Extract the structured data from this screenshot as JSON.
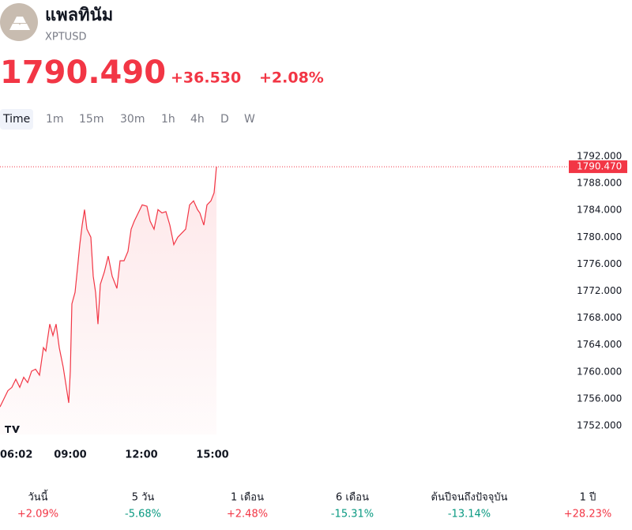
{
  "header": {
    "title": "แพลทินัม",
    "symbol": "XPTUSD"
  },
  "quote": {
    "price": "1790.490",
    "change": "+36.530",
    "change_percent": "+2.08%"
  },
  "tabs": [
    "Time",
    "1m",
    "15m",
    "30m",
    "1h",
    "4h",
    "D",
    "W"
  ],
  "chart_data": {
    "type": "line",
    "x": [
      362,
      372,
      382,
      392,
      402,
      412,
      422,
      432,
      442,
      452,
      462,
      472,
      478,
      488,
      496,
      504,
      512,
      522,
      530,
      536,
      540,
      544,
      552,
      558,
      564,
      570,
      576,
      582,
      592,
      598,
      604,
      610,
      616,
      626,
      636,
      646,
      658,
      666,
      676,
      686,
      694,
      702,
      712,
      722,
      734,
      742,
      752,
      762,
      772,
      782,
      792,
      802,
      812,
      822,
      832,
      842,
      852,
      862,
      868,
      878,
      886,
      896,
      904,
      910
    ],
    "series": [
      {
        "name": "XPTUSD",
        "color": "#f23645",
        "values": [
          1754.8,
          1756.0,
          1757.2,
          1757.7,
          1758.9,
          1757.7,
          1759.2,
          1758.4,
          1760.1,
          1760.4,
          1759.5,
          1763.6,
          1763.1,
          1767.1,
          1765.4,
          1767.1,
          1763.6,
          1760.7,
          1757.7,
          1755.4,
          1760.1,
          1770.1,
          1771.8,
          1775.3,
          1778.9,
          1781.8,
          1784.1,
          1781.2,
          1780.0,
          1774.2,
          1771.8,
          1767.1,
          1773.0,
          1774.8,
          1777.2,
          1774.2,
          1772.4,
          1776.5,
          1776.5,
          1777.9,
          1781.2,
          1782.4,
          1783.6,
          1784.8,
          1784.6,
          1782.4,
          1781.2,
          1784.1,
          1783.6,
          1783.8,
          1781.8,
          1778.9,
          1780.0,
          1780.6,
          1781.2,
          1784.8,
          1785.4,
          1784.1,
          1783.6,
          1781.8,
          1784.8,
          1785.4,
          1786.6,
          1790.47
        ]
      }
    ],
    "xlim": [
      362,
      1802
    ],
    "ylim": [
      1750,
      1794
    ],
    "xticks": [
      {
        "value": 362,
        "label": "06:02"
      },
      {
        "value": 540,
        "label": "09:00"
      },
      {
        "value": 720,
        "label": "12:00"
      },
      {
        "value": 900,
        "label": "15:00"
      }
    ],
    "yticks": [
      {
        "value": 1752,
        "label": "1752.000"
      },
      {
        "value": 1756,
        "label": "1756.000"
      },
      {
        "value": 1760,
        "label": "1760.000"
      },
      {
        "value": 1764,
        "label": "1764.000"
      },
      {
        "value": 1768,
        "label": "1768.000"
      },
      {
        "value": 1772,
        "label": "1772.000"
      },
      {
        "value": 1776,
        "label": "1776.000"
      },
      {
        "value": 1780,
        "label": "1780.000"
      },
      {
        "value": 1784,
        "label": "1784.000"
      },
      {
        "value": 1788,
        "label": "1788.000"
      },
      {
        "value": 1792,
        "label": "1792.000"
      }
    ],
    "price_line": {
      "value": 1790.47,
      "label": "1790.470"
    }
  },
  "performance": [
    {
      "label": "วันนี้",
      "value": "+2.09%"
    },
    {
      "label": "5 วัน",
      "value": "-5.68%"
    },
    {
      "label": "1 เดือน",
      "value": "+2.48%"
    },
    {
      "label": "6 เดือน",
      "value": "-15.31%"
    },
    {
      "label": "ต้นปีจนถึงปัจจุบัน",
      "value": "-13.14%"
    },
    {
      "label": "1 ปี",
      "value": "+28.23%"
    }
  ]
}
